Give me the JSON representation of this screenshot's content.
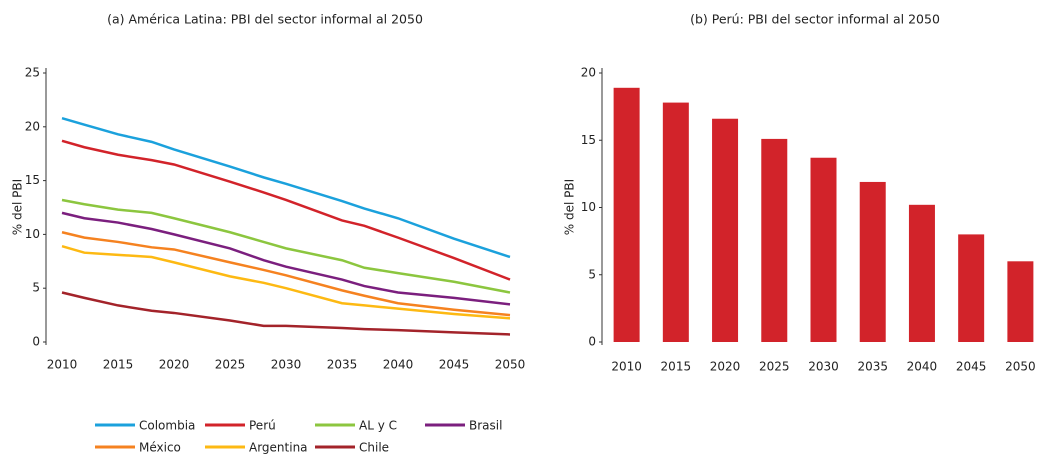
{
  "chart_data": [
    {
      "type": "line",
      "title": "(a) América Latina: PBI del sector informal al 2050",
      "ylabel": "% del PBI",
      "x": [
        2010,
        2012,
        2015,
        2018,
        2020,
        2025,
        2028,
        2030,
        2035,
        2037,
        2040,
        2045,
        2050
      ],
      "xlim": [
        2010,
        2050
      ],
      "xticks": [
        2010,
        2015,
        2020,
        2025,
        2030,
        2035,
        2040,
        2045,
        2050
      ],
      "ylim": [
        0,
        25
      ],
      "yticks": [
        0,
        5,
        10,
        15,
        20,
        25
      ],
      "grid": false,
      "legend": "bottom",
      "series": [
        {
          "name": "Colombia",
          "color": "#1ba1dc",
          "values": [
            20.8,
            20.2,
            19.3,
            18.6,
            17.9,
            16.3,
            15.3,
            14.7,
            13.1,
            12.4,
            11.5,
            9.6,
            7.9
          ]
        },
        {
          "name": "Perú",
          "color": "#d2232a",
          "values": [
            18.7,
            18.1,
            17.4,
            16.9,
            16.5,
            14.9,
            13.9,
            13.2,
            11.3,
            10.8,
            9.7,
            7.8,
            5.8
          ]
        },
        {
          "name": "AL y C",
          "color": "#8cc63f",
          "values": [
            13.2,
            12.8,
            12.3,
            12.0,
            11.5,
            10.2,
            9.3,
            8.7,
            7.6,
            6.9,
            6.4,
            5.6,
            4.6
          ]
        },
        {
          "name": "Brasil",
          "color": "#7b1f7e",
          "values": [
            12.0,
            11.5,
            11.1,
            10.5,
            10.0,
            8.7,
            7.6,
            7.0,
            5.8,
            5.2,
            4.6,
            4.1,
            3.5
          ]
        },
        {
          "name": "México",
          "color": "#f58220",
          "values": [
            10.2,
            9.7,
            9.3,
            8.8,
            8.6,
            7.4,
            6.7,
            6.2,
            4.8,
            4.3,
            3.6,
            3.0,
            2.5
          ]
        },
        {
          "name": "Argentina",
          "color": "#fdb913",
          "values": [
            8.9,
            8.3,
            8.1,
            7.9,
            7.4,
            6.1,
            5.5,
            5.0,
            3.6,
            3.4,
            3.1,
            2.6,
            2.2
          ]
        },
        {
          "name": "Chile",
          "color": "#a3232a",
          "values": [
            4.6,
            4.1,
            3.4,
            2.9,
            2.7,
            2.0,
            1.5,
            1.5,
            1.3,
            1.2,
            1.1,
            0.9,
            0.7
          ]
        }
      ]
    },
    {
      "type": "bar",
      "title": "(b) Perú: PBI del sector informal al 2050",
      "ylabel": "% del PBI",
      "categories": [
        "2010",
        "2015",
        "2020",
        "2025",
        "2030",
        "2035",
        "2040",
        "2045",
        "2050"
      ],
      "values": [
        18.9,
        17.8,
        16.6,
        15.1,
        13.7,
        11.9,
        10.2,
        8.0,
        6.0
      ],
      "color": "#d2232a",
      "ylim": [
        0,
        20
      ],
      "yticks": [
        0,
        5,
        10,
        15,
        20
      ],
      "grid": false
    }
  ]
}
